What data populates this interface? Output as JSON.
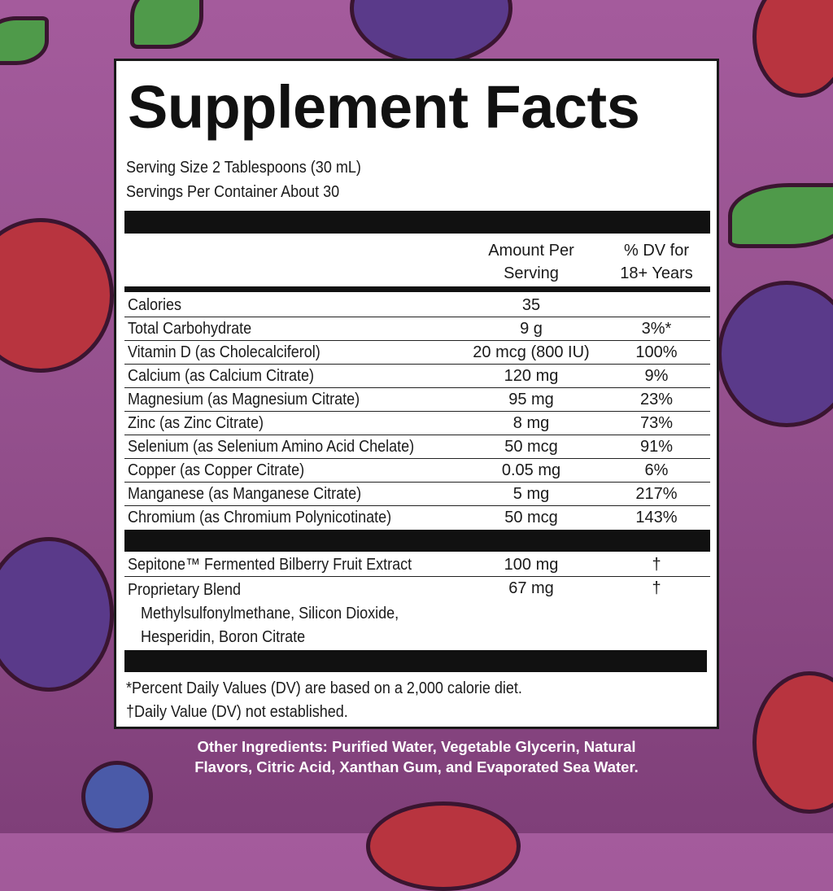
{
  "title": "Supplement Facts",
  "serving_size": "Serving Size 2 Tablespoons (30 mL)",
  "servings_per_container": "Servings Per Container About 30",
  "header": {
    "amount_1": "Amount Per",
    "amount_2": "Serving",
    "dv_1": "% DV for",
    "dv_2": "18+ Years"
  },
  "nutrients": [
    {
      "name": "Calories",
      "amount": "35",
      "dv": ""
    },
    {
      "name": "Total Carbohydrate",
      "amount": "9 g",
      "dv": "3%*"
    },
    {
      "name": "Vitamin D (as Cholecalciferol)",
      "amount": "20 mcg (800 IU)",
      "dv": "100%"
    },
    {
      "name": "Calcium (as Calcium Citrate)",
      "amount": "120 mg",
      "dv": "9%"
    },
    {
      "name": "Magnesium (as Magnesium Citrate)",
      "amount": "95 mg",
      "dv": "23%"
    },
    {
      "name": "Zinc (as Zinc Citrate)",
      "amount": "8 mg",
      "dv": "73%"
    },
    {
      "name": "Selenium (as Selenium Amino Acid Chelate)",
      "amount": "50 mcg",
      "dv": "91%"
    },
    {
      "name": "Copper (as Copper Citrate)",
      "amount": "0.05 mg",
      "dv": "6%"
    },
    {
      "name": "Manganese (as Manganese Citrate)",
      "amount": "5 mg",
      "dv": "217%"
    },
    {
      "name": "Chromium (as Chromium Polynicotinate)",
      "amount": "50 mcg",
      "dv": "143%"
    }
  ],
  "sepitone": {
    "name": "Sepitone™ Fermented Bilberry Fruit Extract",
    "amount": "100 mg",
    "dv": "†"
  },
  "blend": {
    "name": "Proprietary Blend",
    "amount": "67 mg",
    "dv": "†",
    "ingredients_1": "Methylsulfonylmethane, Silicon Dioxide,",
    "ingredients_2": "Hesperidin, Boron Citrate"
  },
  "footnotes": [
    "*Percent Daily Values (DV) are based on a 2,000 calorie diet.",
    "†Daily Value (DV) not established."
  ],
  "other_ingredients": [
    "Other Ingredients: Purified Water, Vegetable Glycerin, Natural",
    "Flavors, Citric Acid, Xanthan Gum, and Evaporated Sea Water."
  ],
  "colors": {
    "background": "#94508d",
    "strawberry": "#b8343f",
    "blackberry": "#5a3a8a",
    "leaf": "#4f9a4a"
  }
}
